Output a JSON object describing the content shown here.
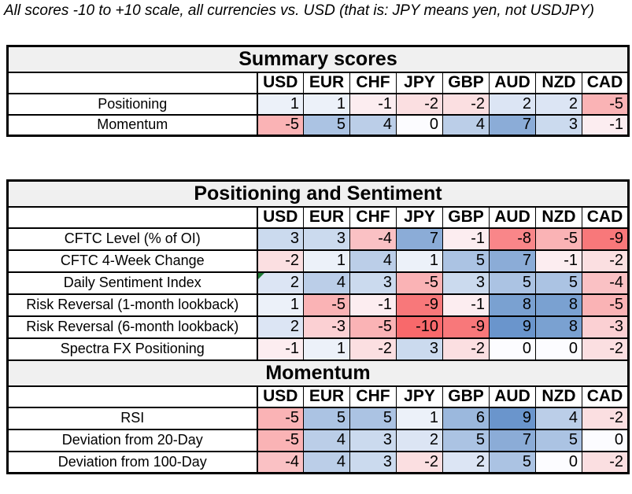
{
  "chart_data": {
    "type": "heatmap",
    "title": "All scores -10 to +10 scale, all currencies vs. USD (that is: JPY means yen, not USDJPY)",
    "columns": [
      "USD",
      "EUR",
      "CHF",
      "JPY",
      "GBP",
      "AUD",
      "NZD",
      "CAD"
    ],
    "color_scale": {
      "scale_min": -10,
      "scale_max": 10,
      "negative": "#F8696B",
      "midpoint": "#FCFCFF",
      "positive": "#5A8AC6"
    },
    "section_header_bg": "#F0F0F0",
    "note_marker_color": "#1E7B34",
    "tables": [
      {
        "name": "summary-scores-table",
        "sections": [
          {
            "header": "Summary scores",
            "rows": [
              {
                "label": "Positioning",
                "values": [
                  1,
                  1,
                  -1,
                  -2,
                  -2,
                  2,
                  2,
                  -5
                ]
              },
              {
                "label": "Momentum",
                "values": [
                  -5,
                  5,
                  4,
                  0,
                  4,
                  7,
                  3,
                  -1
                ]
              }
            ]
          }
        ]
      },
      {
        "name": "detail-scores-table",
        "sections": [
          {
            "header": "Positioning and Sentiment",
            "rows": [
              {
                "label": "CFTC Level (% of OI)",
                "values": [
                  3,
                  3,
                  -4,
                  7,
                  -1,
                  -8,
                  -5,
                  -9
                ]
              },
              {
                "label": "CFTC 4-Week Change",
                "values": [
                  -2,
                  1,
                  4,
                  1,
                  5,
                  7,
                  -1,
                  -2
                ]
              },
              {
                "label": "Daily Sentiment Index",
                "values": [
                  2,
                  4,
                  3,
                  -5,
                  3,
                  5,
                  5,
                  -4
                ],
                "note_marker_column": "USD"
              },
              {
                "label": "Risk Reversal (1-month lookback)",
                "values": [
                  1,
                  -5,
                  -1,
                  -9,
                  -1,
                  8,
                  8,
                  -5
                ]
              },
              {
                "label": "Risk Reversal (6-month lookback)",
                "values": [
                  2,
                  -3,
                  -5,
                  -10,
                  -9,
                  9,
                  8,
                  -3
                ]
              },
              {
                "label": "Spectra FX Positioning",
                "values": [
                  -1,
                  1,
                  -2,
                  3,
                  -2,
                  0,
                  0,
                  -2
                ]
              }
            ]
          },
          {
            "header": "Momentum",
            "rows": [
              {
                "label": "RSI",
                "values": [
                  -5,
                  5,
                  5,
                  1,
                  6,
                  9,
                  4,
                  -2
                ]
              },
              {
                "label": "Deviation from 20-Day",
                "values": [
                  -5,
                  4,
                  3,
                  2,
                  5,
                  7,
                  5,
                  0
                ]
              },
              {
                "label": "Deviation from 100-Day",
                "values": [
                  -4,
                  4,
                  3,
                  -2,
                  2,
                  5,
                  0,
                  -2
                ]
              }
            ]
          }
        ]
      }
    ]
  }
}
